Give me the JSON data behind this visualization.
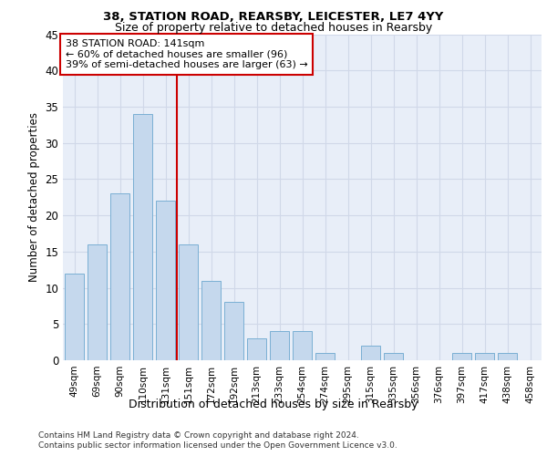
{
  "title1": "38, STATION ROAD, REARSBY, LEICESTER, LE7 4YY",
  "title2": "Size of property relative to detached houses in Rearsby",
  "xlabel": "Distribution of detached houses by size in Rearsby",
  "ylabel": "Number of detached properties",
  "categories": [
    "49sqm",
    "69sqm",
    "90sqm",
    "110sqm",
    "131sqm",
    "151sqm",
    "172sqm",
    "192sqm",
    "213sqm",
    "233sqm",
    "254sqm",
    "274sqm",
    "295sqm",
    "315sqm",
    "335sqm",
    "356sqm",
    "376sqm",
    "397sqm",
    "417sqm",
    "438sqm",
    "458sqm"
  ],
  "values": [
    12,
    16,
    23,
    34,
    22,
    16,
    11,
    8,
    3,
    4,
    4,
    1,
    0,
    2,
    1,
    0,
    0,
    1,
    1,
    1,
    0
  ],
  "bar_color": "#c5d8ed",
  "bar_edge_color": "#7aafd4",
  "vline_color": "#cc0000",
  "vline_xindex": 4,
  "annotation_lines": [
    "38 STATION ROAD: 141sqm",
    "← 60% of detached houses are smaller (96)",
    "39% of semi-detached houses are larger (63) →"
  ],
  "annotation_box_color": "#cc0000",
  "ylim": [
    0,
    45
  ],
  "yticks": [
    0,
    5,
    10,
    15,
    20,
    25,
    30,
    35,
    40,
    45
  ],
  "grid_color": "#d0d8e8",
  "bg_color": "#e8eef8",
  "footnote1": "Contains HM Land Registry data © Crown copyright and database right 2024.",
  "footnote2": "Contains public sector information licensed under the Open Government Licence v3.0."
}
